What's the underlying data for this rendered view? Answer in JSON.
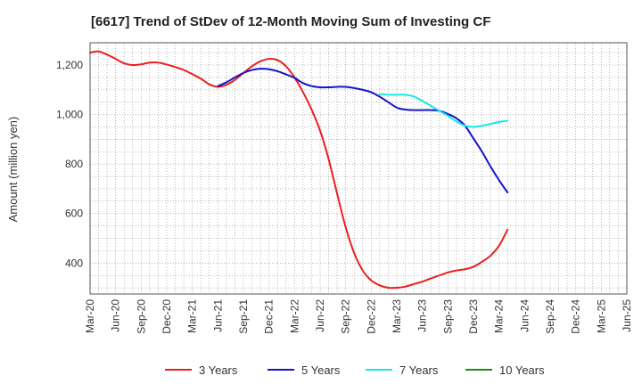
{
  "chart_data": {
    "type": "line",
    "title": "[6617]  Trend of StDev of 12-Month Moving Sum of Investing CF",
    "xlabel": "",
    "ylabel": "Amount (million yen)",
    "x_tick_labels": [
      "Mar-20",
      "Jun-20",
      "Sep-20",
      "Dec-20",
      "Mar-21",
      "Jun-21",
      "Sep-21",
      "Dec-21",
      "Mar-22",
      "Jun-22",
      "Sep-22",
      "Dec-22",
      "Mar-23",
      "Jun-23",
      "Sep-23",
      "Dec-23",
      "Mar-24",
      "Jun-24",
      "Sep-24",
      "Dec-24",
      "Mar-25",
      "Jun-25"
    ],
    "y_ticks": [
      400,
      600,
      800,
      1000,
      1200
    ],
    "y_tick_labels": [
      "400",
      "600",
      "800",
      "1,000",
      "1,200"
    ],
    "ylim": [
      275,
      1290
    ],
    "grid": true,
    "legend_position": "bottom",
    "series": [
      {
        "name": "3 Years",
        "color": "#e8201e",
        "values": [
          1250,
          1255,
          1242,
          1225,
          1207,
          1200,
          1203,
          1210,
          1210,
          1202,
          1192,
          1180,
          1163,
          1145,
          1122,
          1112,
          1120,
          1140,
          1168,
          1195,
          1215,
          1225,
          1220,
          1195,
          1150,
          1090,
          1020,
          935,
          820,
          680,
          545,
          440,
          370,
          330,
          310,
          300,
          300,
          305,
          315,
          325,
          338,
          350,
          362,
          370,
          375,
          385,
          405,
          430,
          470,
          535
        ]
      },
      {
        "name": "5 Years",
        "color": "#1414c8",
        "values": [
          null,
          null,
          null,
          null,
          null,
          null,
          null,
          null,
          null,
          null,
          null,
          null,
          null,
          null,
          null,
          1115,
          1130,
          1150,
          1168,
          1180,
          1185,
          1183,
          1175,
          1162,
          1148,
          1127,
          1115,
          1110,
          1110,
          1112,
          1112,
          1107,
          1100,
          1090,
          1072,
          1050,
          1028,
          1020,
          1018,
          1018,
          1018,
          1015,
          1002,
          985,
          955,
          903,
          850,
          790,
          735,
          685
        ]
      },
      {
        "name": "7 Years",
        "color": "#17e8e8",
        "values": [
          null,
          null,
          null,
          null,
          null,
          null,
          null,
          null,
          null,
          null,
          null,
          null,
          null,
          null,
          null,
          null,
          null,
          null,
          null,
          null,
          null,
          null,
          null,
          null,
          null,
          null,
          null,
          null,
          null,
          null,
          null,
          null,
          null,
          null,
          1082,
          1080,
          1080,
          1080,
          1073,
          1055,
          1035,
          1015,
          995,
          972,
          955,
          950,
          955,
          962,
          970,
          975
        ]
      },
      {
        "name": "10 Years",
        "color": "#1a8a1a",
        "values": []
      }
    ]
  }
}
